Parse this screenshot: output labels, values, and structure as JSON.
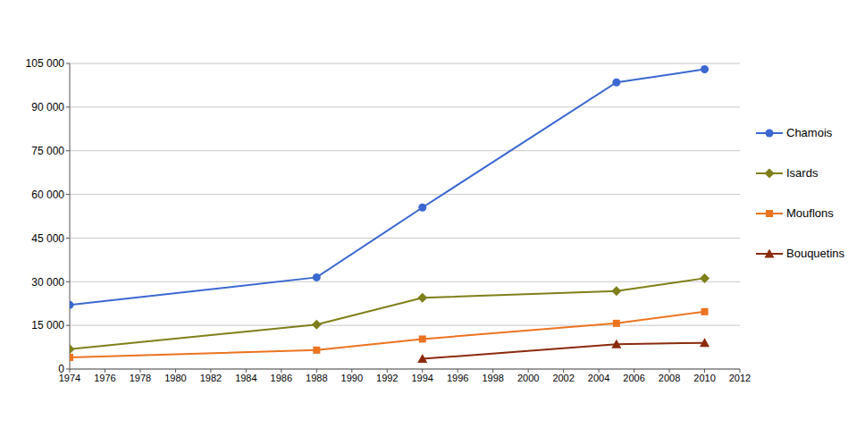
{
  "chart_data": {
    "type": "line",
    "x": [
      1974,
      1988,
      1994,
      2005,
      2010
    ],
    "series": [
      {
        "name": "Chamois",
        "color": "#3b68d0",
        "marker": "circle",
        "values": [
          22000,
          31500,
          55500,
          98500,
          103000
        ]
      },
      {
        "name": "Isards",
        "color": "#7f7f1a",
        "marker": "diamond",
        "values": [
          6800,
          15300,
          24500,
          26800,
          31200
        ]
      },
      {
        "name": "Mouflons",
        "color": "#ec7420",
        "marker": "square",
        "values": [
          4000,
          6500,
          10300,
          15700,
          19700
        ]
      },
      {
        "name": "Bouquetins",
        "color": "#8a2a0c",
        "marker": "triangle",
        "values": [
          null,
          null,
          3500,
          8500,
          9000
        ]
      }
    ],
    "xlim": [
      1974,
      2012
    ],
    "xticks": [
      1974,
      1976,
      1978,
      1980,
      1982,
      1984,
      1986,
      1988,
      1990,
      1992,
      1994,
      1996,
      1998,
      2000,
      2002,
      2004,
      2006,
      2008,
      2010,
      2012
    ],
    "ylim": [
      0,
      105000
    ],
    "yticks": [
      0,
      {
        "value": 15000,
        "label": "15 000"
      },
      {
        "value": 30000,
        "label": "30 000"
      },
      {
        "value": 45000,
        "label": "45 000"
      },
      {
        "value": 60000,
        "label": "60 000"
      },
      {
        "value": 75000,
        "label": "75 000"
      },
      {
        "value": 90000,
        "label": "90 000"
      },
      {
        "value": 105000,
        "label": "105 000"
      }
    ],
    "grid": true,
    "legend": "right"
  }
}
